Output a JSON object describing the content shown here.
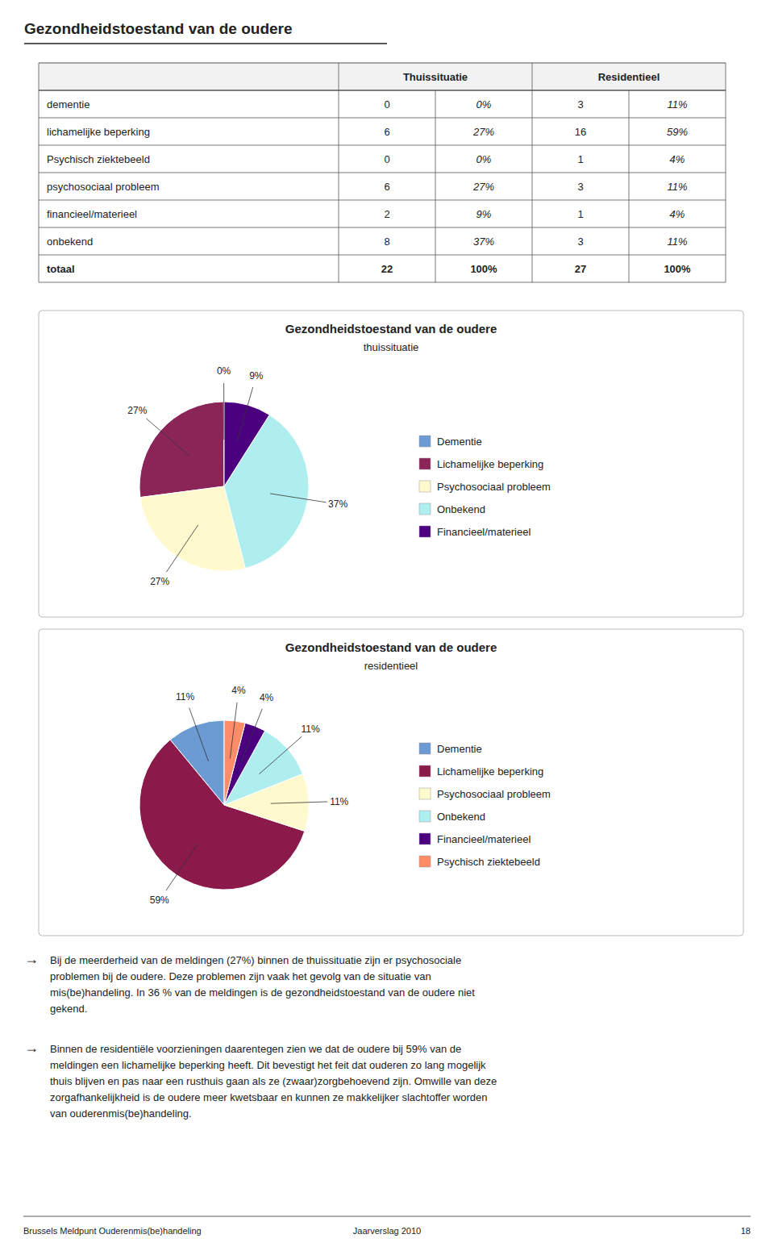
{
  "title": "Gezondheidstoestand van de oudere",
  "chart_data": [
    {
      "type": "table",
      "categories": [
        "dementie",
        "lichamelijke beperking",
        "Psychisch ziektebeeld",
        "psychosociaal probleem",
        "financieel/materieel",
        "onbekend",
        "totaal"
      ],
      "series": [
        {
          "name": "Thuissituatie",
          "values": [
            0,
            6,
            0,
            6,
            2,
            8,
            22
          ],
          "shares": [
            0,
            27,
            0,
            27,
            9,
            37,
            100
          ],
          "share_labels": [
            "0%",
            "27%",
            "0%",
            "27%",
            "9%",
            "37%",
            "100%"
          ]
        },
        {
          "name": "Residentieel",
          "values": [
            3,
            16,
            1,
            3,
            1,
            3,
            27
          ],
          "shares": [
            11,
            59,
            4,
            11,
            4,
            11,
            100
          ],
          "share_labels": [
            "11%",
            "59%",
            "4%",
            "11%",
            "4%",
            "11%",
            "100%"
          ]
        }
      ]
    },
    {
      "type": "pie",
      "title": "Gezondheidstoestand van de oudere",
      "subtitle": "thuissituatie",
      "categories": [
        "Dementie",
        "Lichamelijke beperking",
        "Psychosociaal probleem",
        "Onbekend",
        "Financieel/materieel"
      ],
      "values": [
        0.1,
        27,
        27,
        37,
        9
      ],
      "value_labels": [
        "0%",
        "27%",
        "27%",
        "37%",
        "9%"
      ],
      "colors": [
        "#6B9BD2",
        "#8B2558",
        "#FFFACD",
        "#AFEEEE",
        "#4B0080"
      ],
      "legend": "right",
      "data_labels": true
    },
    {
      "type": "pie",
      "title": "Gezondheidstoestand van de oudere",
      "subtitle": "residentieel",
      "categories": [
        "Dementie",
        "Lichamelijke beperking",
        "Psychosociaal probleem",
        "Onbekend",
        "Financieel/materieel",
        "Psychisch ziektebeeld"
      ],
      "values": [
        11,
        59,
        11,
        11,
        4,
        4
      ],
      "value_labels": [
        "11%",
        "59%",
        "11%",
        "11%",
        "4%",
        "4%"
      ],
      "colors": [
        "#6B9BD2",
        "#8B1A4A",
        "#FFFACD",
        "#AFEEEE",
        "#4B0080",
        "#FF8C69"
      ],
      "legend": "right",
      "data_labels": true
    }
  ],
  "annotations": [
    {
      "label": "→",
      "text": "Bij de meerderheid van de meldingen (27%) binnen de thuissituatie zijn er psychosociale\nproblemen bij de oudere. Deze problemen zijn vaak het gevolg van de situatie van\nmis(be)handeling. In 36 % van de meldingen is de gezondheidstoestand van de oudere niet\ngekend."
    },
    {
      "label": "→",
      "text": "Binnen de residentiële voorzieningen daarentegen zien we dat de oudere bij 59% van de\nmeldingen een lichamelijke beperking heeft. Dit bevestigt het feit dat ouderen zo lang mogelijk\nthuis blijven en pas naar een rusthuis gaan als ze (zwaar)zorgbehoevend zijn. Omwille van deze\nzorgafhankelijkheid is de oudere meer kwetsbaar en kunnen ze makkelijker slachtoffer worden\nvan ouderenmis(be)handeling."
    }
  ],
  "footer": {
    "left": "Brussels Meldpunt Ouderenmis(be)handeling",
    "center": "Jaarverslag 2010",
    "right": "18"
  }
}
